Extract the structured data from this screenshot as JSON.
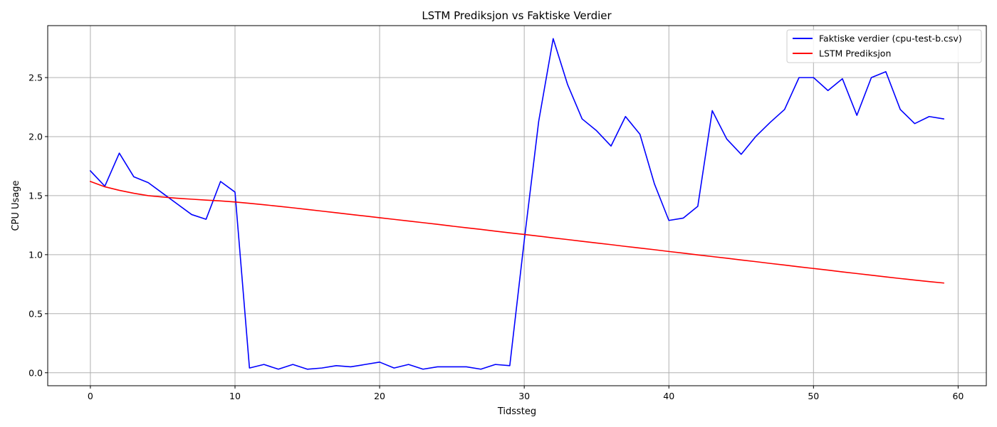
{
  "chart_data": {
    "type": "line",
    "title": "LSTM Prediksjon vs Faktiske Verdier",
    "xlabel": "Tidssteg",
    "ylabel": "CPU Usage",
    "xlim": [
      -2.95,
      61.95
    ],
    "ylim": [
      -0.11,
      2.94
    ],
    "xticks": [
      0,
      10,
      20,
      30,
      40,
      50,
      60
    ],
    "yticks": [
      0.0,
      0.5,
      1.0,
      1.5,
      2.0,
      2.5
    ],
    "ytick_labels": [
      "0.0",
      "0.5",
      "1.0",
      "1.5",
      "2.0",
      "2.5"
    ],
    "grid": true,
    "legend_position": "top-right",
    "series": [
      {
        "name": "Faktiske verdier (cpu-test-b.csv)",
        "color": "#0000ff",
        "x": [
          0,
          1,
          2,
          3,
          4,
          5,
          6,
          7,
          8,
          9,
          10,
          11,
          12,
          13,
          14,
          15,
          16,
          17,
          18,
          19,
          20,
          21,
          22,
          23,
          24,
          25,
          26,
          27,
          28,
          29,
          30,
          31,
          32,
          33,
          34,
          35,
          36,
          37,
          38,
          39,
          40,
          41,
          42,
          43,
          44,
          45,
          46,
          47,
          48,
          49,
          50,
          51,
          52,
          53,
          54,
          55,
          56,
          57,
          58,
          59
        ],
        "values": [
          1.71,
          1.58,
          1.86,
          1.66,
          1.61,
          1.52,
          1.43,
          1.34,
          1.3,
          1.62,
          1.53,
          0.04,
          0.07,
          0.03,
          0.07,
          0.03,
          0.04,
          0.06,
          0.05,
          0.07,
          0.09,
          0.04,
          0.07,
          0.03,
          0.05,
          0.05,
          0.05,
          0.03,
          0.07,
          0.06,
          1.12,
          2.13,
          2.83,
          2.44,
          2.15,
          2.05,
          1.92,
          2.17,
          2.02,
          1.6,
          1.29,
          1.31,
          1.41,
          2.22,
          1.98,
          1.85,
          2.0,
          2.12,
          2.23,
          2.5,
          2.5,
          2.39,
          2.49,
          2.18,
          2.5,
          2.55,
          2.23,
          2.11,
          2.17,
          2.15
        ]
      },
      {
        "name": "LSTM Prediksjon",
        "color": "#ff0000",
        "x": [
          0,
          1,
          2,
          3,
          4,
          5,
          6,
          7,
          8,
          9,
          10,
          11,
          12,
          13,
          14,
          15,
          16,
          17,
          18,
          19,
          20,
          21,
          22,
          23,
          24,
          25,
          26,
          27,
          28,
          29,
          30,
          31,
          32,
          33,
          34,
          35,
          36,
          37,
          38,
          39,
          40,
          41,
          42,
          43,
          44,
          45,
          46,
          47,
          48,
          49,
          50,
          51,
          52,
          53,
          54,
          55,
          56,
          57,
          58,
          59
        ],
        "values": [
          1.62,
          1.575,
          1.545,
          1.52,
          1.5,
          1.488,
          1.478,
          1.47,
          1.462,
          1.455,
          1.446,
          1.435,
          1.423,
          1.41,
          1.397,
          1.383,
          1.369,
          1.355,
          1.341,
          1.327,
          1.313,
          1.299,
          1.285,
          1.271,
          1.257,
          1.242,
          1.228,
          1.214,
          1.199,
          1.185,
          1.171,
          1.157,
          1.142,
          1.128,
          1.113,
          1.099,
          1.085,
          1.07,
          1.056,
          1.042,
          1.027,
          1.013,
          0.998,
          0.984,
          0.97,
          0.955,
          0.941,
          0.926,
          0.912,
          0.897,
          0.883,
          0.869,
          0.854,
          0.84,
          0.826,
          0.812,
          0.798,
          0.785,
          0.772,
          0.76
        ]
      }
    ]
  }
}
